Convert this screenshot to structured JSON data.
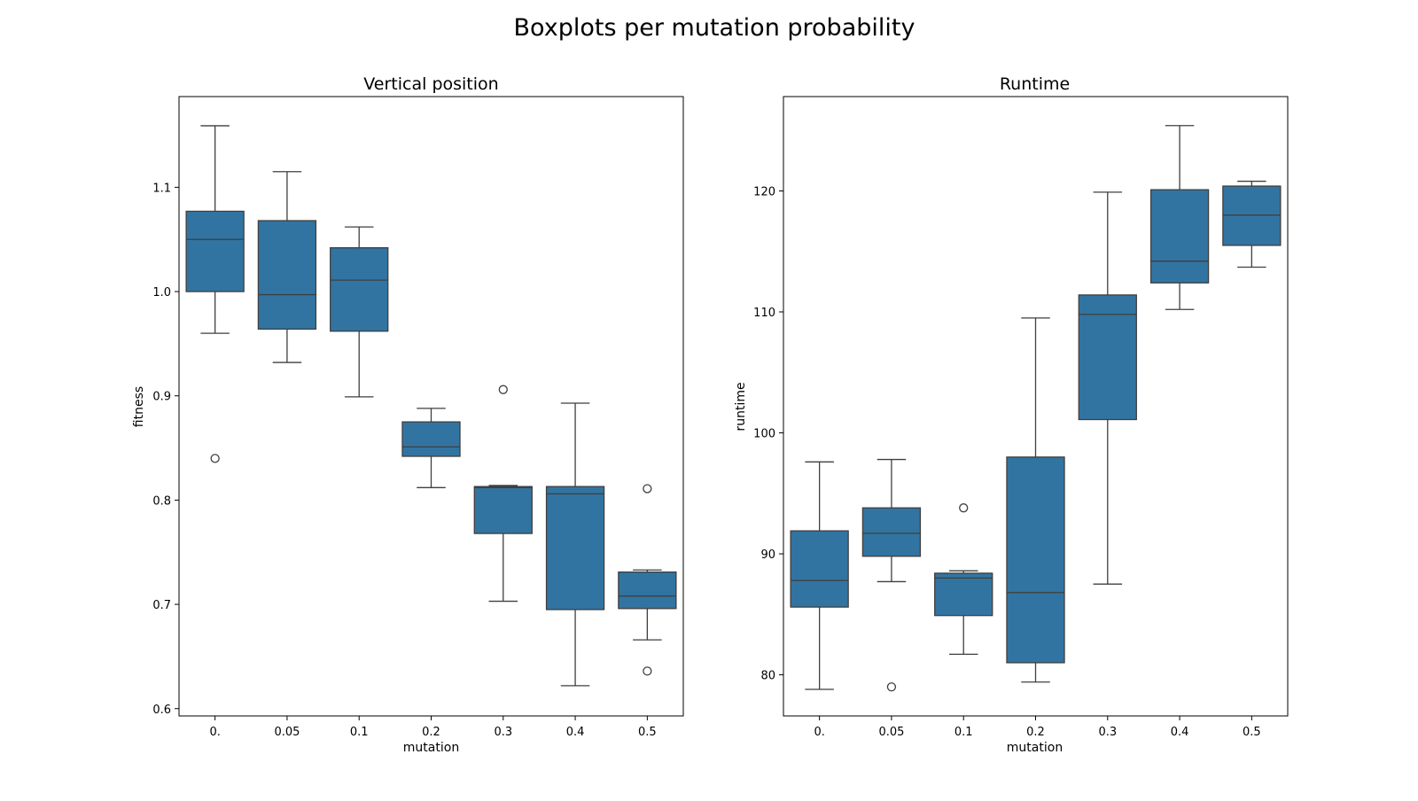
{
  "figure": {
    "title": "Boxplots per mutation probability",
    "box_color": "#3274a1",
    "line_color": "#3f3f3f"
  },
  "chart_data": [
    {
      "type": "box",
      "title": "Vertical position",
      "xlabel": "mutation",
      "ylabel": "fitness",
      "ylim": [
        0.593,
        1.187
      ],
      "yticks": [
        0.6,
        0.7,
        0.8,
        0.9,
        1.0,
        1.1
      ],
      "ytick_labels": [
        "0.6",
        "0.7",
        "0.8",
        "0.9",
        "1.0",
        "1.1"
      ],
      "categories": [
        "0.",
        "0.05",
        "0.1",
        "0.2",
        "0.3",
        "0.4",
        "0.5"
      ],
      "grid": false,
      "legend": "none",
      "boxes": [
        {
          "whisker_low": 0.96,
          "q1": 1.0,
          "median": 1.05,
          "q3": 1.077,
          "whisker_high": 1.159,
          "outliers": [
            0.84
          ]
        },
        {
          "whisker_low": 0.932,
          "q1": 0.964,
          "median": 0.997,
          "q3": 1.068,
          "whisker_high": 1.115,
          "outliers": []
        },
        {
          "whisker_low": 0.899,
          "q1": 0.962,
          "median": 1.011,
          "q3": 1.042,
          "whisker_high": 1.062,
          "outliers": []
        },
        {
          "whisker_low": 0.812,
          "q1": 0.842,
          "median": 0.851,
          "q3": 0.875,
          "whisker_high": 0.888,
          "outliers": []
        },
        {
          "whisker_low": 0.703,
          "q1": 0.768,
          "median": 0.812,
          "q3": 0.813,
          "whisker_high": 0.814,
          "outliers": [
            0.906
          ]
        },
        {
          "whisker_low": 0.622,
          "q1": 0.695,
          "median": 0.806,
          "q3": 0.813,
          "whisker_high": 0.893,
          "outliers": []
        },
        {
          "whisker_low": 0.666,
          "q1": 0.696,
          "median": 0.708,
          "q3": 0.731,
          "whisker_high": 0.733,
          "outliers": [
            0.811,
            0.636
          ]
        }
      ]
    },
    {
      "type": "box",
      "title": "Runtime",
      "xlabel": "mutation",
      "ylabel": "runtime",
      "ylim": [
        76.6,
        127.8
      ],
      "yticks": [
        80,
        90,
        100,
        110,
        120
      ],
      "ytick_labels": [
        "80",
        "90",
        "100",
        "110",
        "120"
      ],
      "categories": [
        "0.",
        "0.05",
        "0.1",
        "0.2",
        "0.3",
        "0.4",
        "0.5"
      ],
      "grid": false,
      "legend": "none",
      "boxes": [
        {
          "whisker_low": 78.8,
          "q1": 85.6,
          "median": 87.8,
          "q3": 91.9,
          "whisker_high": 97.6,
          "outliers": []
        },
        {
          "whisker_low": 87.7,
          "q1": 89.8,
          "median": 91.7,
          "q3": 93.8,
          "whisker_high": 97.8,
          "outliers": [
            79.0
          ]
        },
        {
          "whisker_low": 81.7,
          "q1": 84.9,
          "median": 88.0,
          "q3": 88.4,
          "whisker_high": 88.6,
          "outliers": [
            93.8
          ]
        },
        {
          "whisker_low": 79.4,
          "q1": 81.0,
          "median": 86.8,
          "q3": 98.0,
          "whisker_high": 109.5,
          "outliers": []
        },
        {
          "whisker_low": 87.5,
          "q1": 101.1,
          "median": 109.8,
          "q3": 111.4,
          "whisker_high": 119.9,
          "outliers": []
        },
        {
          "whisker_low": 110.2,
          "q1": 112.4,
          "median": 114.2,
          "q3": 120.1,
          "whisker_high": 125.4,
          "outliers": []
        },
        {
          "whisker_low": 113.7,
          "q1": 115.5,
          "median": 118.0,
          "q3": 120.4,
          "whisker_high": 120.8,
          "outliers": []
        }
      ]
    }
  ]
}
